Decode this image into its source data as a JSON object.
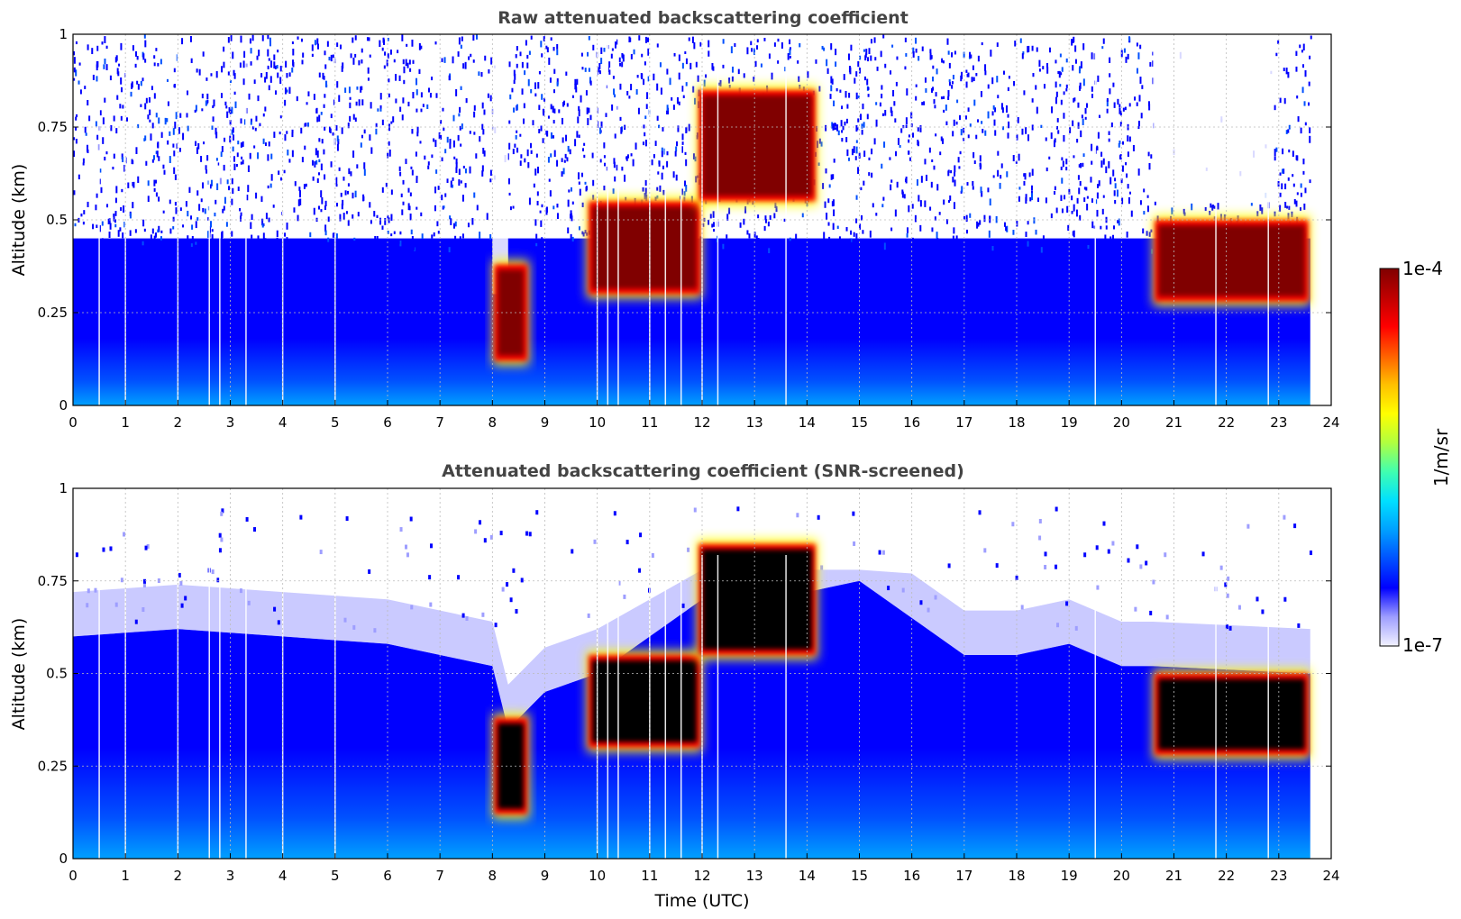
{
  "chart_data": [
    {
      "type": "heatmap",
      "title": "Raw attenuated backscattering coefficient",
      "xlabel": "",
      "ylabel": "Altitude (km)",
      "xlim": [
        0,
        24
      ],
      "ylim": [
        0,
        1
      ],
      "x_ticks": [
        "0",
        "1",
        "2",
        "3",
        "4",
        "5",
        "6",
        "7",
        "8",
        "9",
        "10",
        "11",
        "12",
        "13",
        "14",
        "15",
        "16",
        "17",
        "18",
        "19",
        "20",
        "21",
        "22",
        "23",
        "24"
      ],
      "y_ticks": [
        "0",
        "0.25",
        "0.5",
        "0.75",
        "1"
      ],
      "grid": true,
      "data_end_time": 23.6,
      "features": {
        "noisy_upper_region": {
          "from_time": 0,
          "to_time": 23.6,
          "above_km": 0.45
        },
        "clear_gaps": [
          {
            "from_time": 8.0,
            "to_time": 8.3,
            "above_km": 0.3
          },
          {
            "from_time": 20.6,
            "to_time": 22.9,
            "above_km": 0.55
          }
        ],
        "cloud_layers": [
          {
            "from_time": 8.0,
            "to_time": 8.7,
            "base_km": 0.12,
            "top_km": 0.38
          },
          {
            "from_time": 9.8,
            "to_time": 12.0,
            "base_km": 0.3,
            "top_km": 0.55
          },
          {
            "from_time": 11.9,
            "to_time": 14.2,
            "base_km": 0.55,
            "top_km": 0.85
          },
          {
            "from_time": 20.6,
            "to_time": 23.6,
            "base_km": 0.28,
            "top_km": 0.5
          }
        ],
        "missing_profiles": [
          0.5,
          1.0,
          2.0,
          2.6,
          2.8,
          3.3,
          4.0,
          5.0,
          10.0,
          10.2,
          10.4,
          11.0,
          11.3,
          11.6,
          12.0,
          12.3,
          13.6,
          19.5,
          21.8,
          22.8
        ]
      }
    },
    {
      "type": "heatmap",
      "title": "Attenuated backscattering coefficient (SNR-screened)",
      "xlabel": "Time (UTC)",
      "ylabel": "Altitude (km)",
      "xlim": [
        0,
        24
      ],
      "ylim": [
        0,
        1
      ],
      "x_ticks": [
        "0",
        "1",
        "2",
        "3",
        "4",
        "5",
        "6",
        "7",
        "8",
        "9",
        "10",
        "11",
        "12",
        "13",
        "14",
        "15",
        "16",
        "17",
        "18",
        "19",
        "20",
        "21",
        "22",
        "23",
        "24"
      ],
      "y_ticks": [
        "0",
        "0.25",
        "0.5",
        "0.75",
        "1"
      ],
      "grid": true,
      "data_end_time": 23.6,
      "features": {
        "signal_top_km": [
          [
            0,
            0.6
          ],
          [
            2,
            0.62
          ],
          [
            4,
            0.6
          ],
          [
            6,
            0.58
          ],
          [
            8,
            0.52
          ],
          [
            8.3,
            0.35
          ],
          [
            9,
            0.45
          ],
          [
            10,
            0.5
          ],
          [
            12,
            0.7
          ],
          [
            14,
            0.72
          ],
          [
            15,
            0.75
          ],
          [
            16,
            0.65
          ],
          [
            17,
            0.55
          ],
          [
            18,
            0.55
          ],
          [
            19,
            0.58
          ],
          [
            20,
            0.52
          ],
          [
            20.6,
            0.52
          ],
          [
            23.6,
            0.5
          ]
        ],
        "cloud_layers": [
          {
            "from_time": 8.0,
            "to_time": 8.7,
            "base_km": 0.12,
            "top_km": 0.38
          },
          {
            "from_time": 9.8,
            "to_time": 12.0,
            "base_km": 0.3,
            "top_km": 0.55
          },
          {
            "from_time": 11.9,
            "to_time": 14.2,
            "base_km": 0.55,
            "top_km": 0.85
          },
          {
            "from_time": 20.6,
            "to_time": 23.6,
            "base_km": 0.28,
            "top_km": 0.5
          }
        ],
        "missing_profiles": [
          0.5,
          1.0,
          2.0,
          2.6,
          2.8,
          3.3,
          4.0,
          5.0,
          10.0,
          10.2,
          10.4,
          11.0,
          11.3,
          11.6,
          12.0,
          12.3,
          13.6,
          19.5,
          21.8,
          22.8
        ]
      }
    }
  ],
  "colorbar": {
    "max_label": "1e-4",
    "min_label": "1e-7",
    "unit_label": "1/m/sr",
    "colormap": [
      "#f2f2ff",
      "#9e9eff",
      "#0000ff",
      "#0050ff",
      "#00a0ff",
      "#00e0ff",
      "#40ffb0",
      "#b0ff40",
      "#ffff00",
      "#ffc000",
      "#ff6000",
      "#ff0000",
      "#c00000",
      "#800000"
    ],
    "saturation_color": "#000000"
  }
}
